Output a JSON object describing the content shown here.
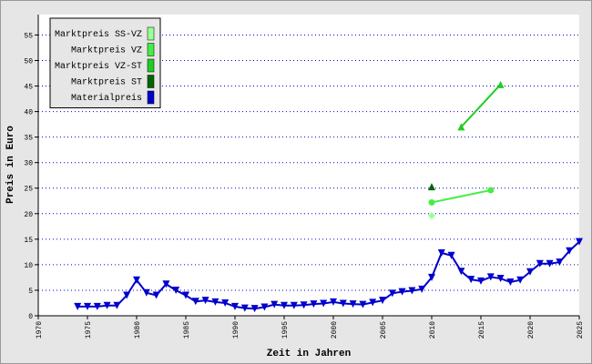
{
  "chart_data": {
    "type": "line",
    "x_label": "Zeit in Jahren",
    "y_label": "Preis in Euro",
    "xlim": [
      1970,
      2025
    ],
    "ylim": [
      0,
      59
    ],
    "xticks": [
      1970,
      1975,
      1980,
      1985,
      1990,
      1995,
      2000,
      2005,
      2010,
      2015,
      2020,
      2025
    ],
    "yticks": [
      0,
      5,
      10,
      15,
      20,
      25,
      30,
      35,
      40,
      45,
      50,
      55
    ],
    "grid": true,
    "legend": "top-left",
    "series": [
      {
        "name": "Marktpreis SS-VZ",
        "color": "#99ff99",
        "marker": "diamond",
        "x": [
          2010
        ],
        "values": [
          19.6
        ]
      },
      {
        "name": "Marktpreis VZ",
        "color": "#44ee44",
        "marker": "circle",
        "x": [
          2010,
          2016
        ],
        "values": [
          22.2,
          24.6
        ]
      },
      {
        "name": "Marktpreis VZ-ST",
        "color": "#22cc22",
        "marker": "triangle-up",
        "x": [
          2013,
          2017
        ],
        "values": [
          37.0,
          45.3
        ]
      },
      {
        "name": "Marktpreis ST",
        "color": "#006600",
        "marker": "triangle-up",
        "x": [
          2010
        ],
        "values": [
          25.3
        ]
      },
      {
        "name": "Materialpreis",
        "color": "#0000cc",
        "marker": "triangle-down",
        "x": [
          1974,
          1975,
          1976,
          1977,
          1978,
          1979,
          1980,
          1981,
          1982,
          1983,
          1984,
          1985,
          1986,
          1987,
          1988,
          1989,
          1990,
          1991,
          1992,
          1993,
          1994,
          1995,
          1996,
          1997,
          1998,
          1999,
          2000,
          2001,
          2002,
          2003,
          2004,
          2005,
          2006,
          2007,
          2008,
          2009,
          2010,
          2011,
          2012,
          2013,
          2014,
          2015,
          2016,
          2017,
          2018,
          2019,
          2020,
          2021,
          2022,
          2023,
          2024,
          2025
        ],
        "values": [
          1.8,
          1.8,
          1.8,
          2.0,
          2.0,
          4.0,
          7.0,
          4.5,
          4.0,
          6.2,
          5.0,
          4.0,
          2.8,
          3.0,
          2.7,
          2.5,
          1.8,
          1.5,
          1.4,
          1.7,
          2.2,
          2.0,
          2.0,
          2.1,
          2.3,
          2.4,
          2.7,
          2.4,
          2.3,
          2.2,
          2.6,
          3.0,
          4.4,
          4.7,
          4.9,
          5.2,
          7.5,
          12.3,
          11.8,
          8.7,
          7.1,
          6.8,
          7.6,
          7.3,
          6.6,
          7.0,
          8.6,
          10.2,
          10.2,
          10.5,
          12.7,
          14.5
        ]
      }
    ]
  }
}
